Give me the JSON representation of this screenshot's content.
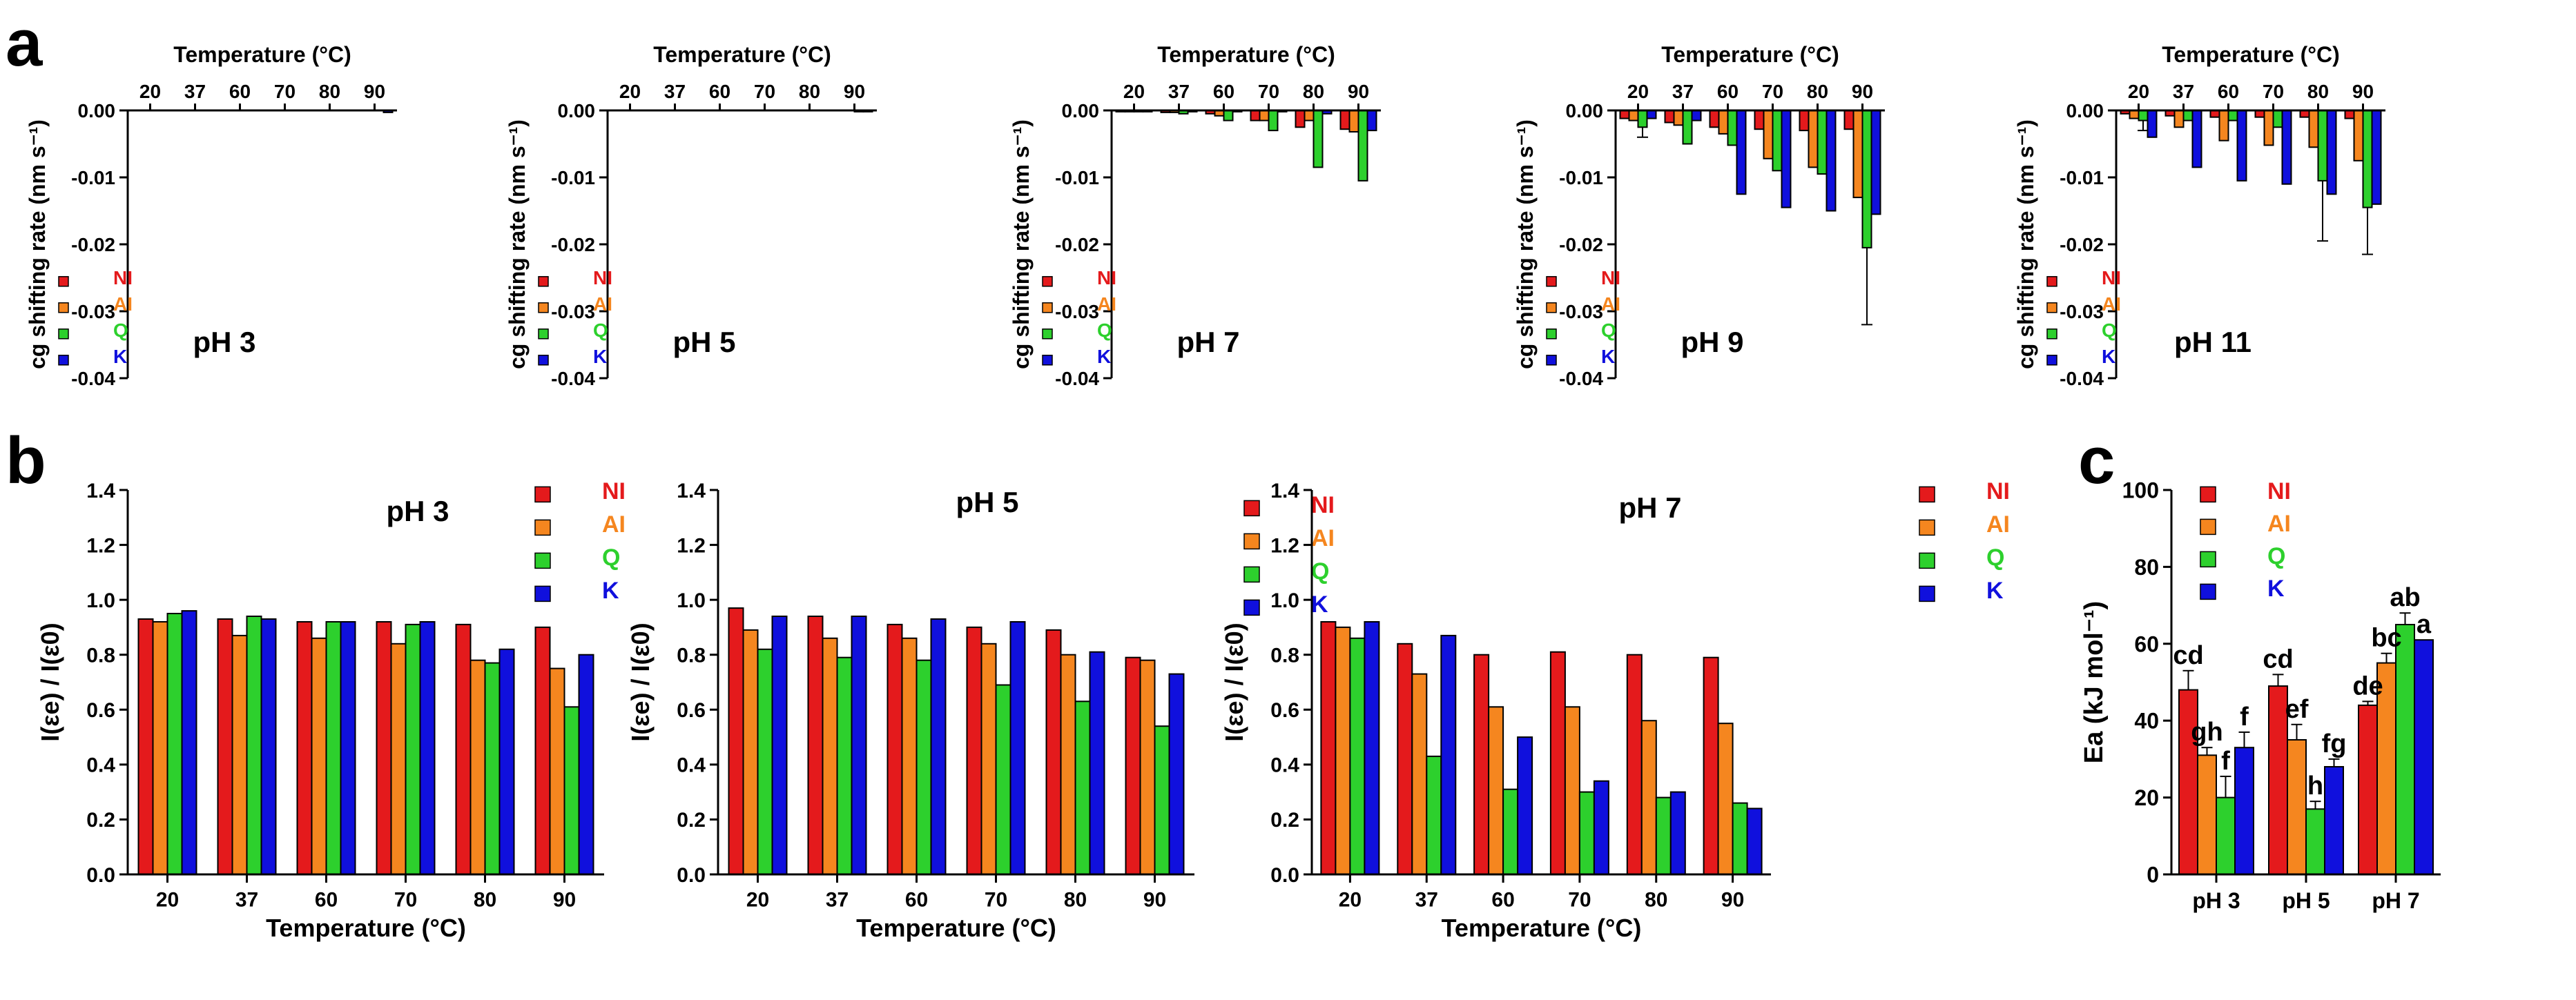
{
  "figure": {
    "panel_labels": {
      "a": "a",
      "b": "b",
      "c": "c"
    },
    "colors": {
      "NI": "#e41a1c",
      "AI": "#f5861f",
      "Q": "#2dd02d",
      "K": "#1010dd",
      "axis": "#000000"
    }
  },
  "chart_data": [
    {
      "panel": "a",
      "type": "bar",
      "title": "pH 3",
      "xlabel": "Temperature (°C)",
      "ylabel": "cg shifting rate (nm s⁻¹)",
      "categories": [
        "20",
        "37",
        "60",
        "70",
        "80",
        "90"
      ],
      "ylim": [
        -0.04,
        0
      ],
      "yticks": [
        "0.00",
        "-0.01",
        "-0.02",
        "-0.03",
        "-0.04"
      ],
      "legend": [
        "NI",
        "AI",
        "Q",
        "K"
      ],
      "series": [
        {
          "name": "NI",
          "values": [
            0,
            0,
            0,
            0,
            0,
            0
          ]
        },
        {
          "name": "AI",
          "values": [
            0,
            0,
            0,
            0,
            0,
            0
          ]
        },
        {
          "name": "Q",
          "values": [
            0,
            0,
            0,
            0,
            0,
            0
          ]
        },
        {
          "name": "K",
          "values": [
            0,
            0,
            0,
            0,
            0,
            -0.0003
          ]
        }
      ]
    },
    {
      "panel": "a",
      "type": "bar",
      "title": "pH 5",
      "xlabel": "Temperature (°C)",
      "ylabel": "cg shifting rate (nm s⁻¹)",
      "categories": [
        "20",
        "37",
        "60",
        "70",
        "80",
        "90"
      ],
      "ylim": [
        -0.04,
        0
      ],
      "yticks": [
        "0.00",
        "-0.01",
        "-0.02",
        "-0.03",
        "-0.04"
      ],
      "legend": [
        "NI",
        "AI",
        "Q",
        "K"
      ],
      "series": [
        {
          "name": "NI",
          "values": [
            0,
            0,
            0,
            0,
            0,
            0
          ]
        },
        {
          "name": "AI",
          "values": [
            0,
            0,
            0,
            0,
            0,
            0
          ]
        },
        {
          "name": "Q",
          "values": [
            0,
            0,
            0,
            0,
            0,
            -0.0002
          ]
        },
        {
          "name": "K",
          "values": [
            0,
            0,
            0,
            0,
            0,
            -0.0002
          ]
        }
      ]
    },
    {
      "panel": "a",
      "type": "bar",
      "title": "pH 7",
      "xlabel": "Temperature (°C)",
      "ylabel": "cg shifting rate (nm s⁻¹)",
      "categories": [
        "20",
        "37",
        "60",
        "70",
        "80",
        "90"
      ],
      "ylim": [
        -0.04,
        0
      ],
      "yticks": [
        "0.00",
        "-0.01",
        "-0.02",
        "-0.03",
        "-0.04"
      ],
      "legend": [
        "NI",
        "AI",
        "Q",
        "K"
      ],
      "series": [
        {
          "name": "NI",
          "values": [
            -0.0002,
            -0.0003,
            -0.0005,
            -0.0015,
            -0.0025,
            -0.0028
          ]
        },
        {
          "name": "AI",
          "values": [
            -0.0002,
            -0.0003,
            -0.0008,
            -0.0015,
            -0.0015,
            -0.0032
          ]
        },
        {
          "name": "Q",
          "values": [
            -0.0002,
            -0.0005,
            -0.0015,
            -0.003,
            -0.0085,
            -0.0105
          ]
        },
        {
          "name": "K",
          "values": [
            -0.0002,
            -0.0002,
            -0.0002,
            -0.0002,
            -0.0005,
            -0.003
          ]
        }
      ]
    },
    {
      "panel": "a",
      "type": "bar",
      "title": "pH 9",
      "xlabel": "Temperature (°C)",
      "ylabel": "cg shifting rate (nm s⁻¹)",
      "categories": [
        "20",
        "37",
        "60",
        "70",
        "80",
        "90"
      ],
      "ylim": [
        -0.04,
        0
      ],
      "yticks": [
        "0.00",
        "-0.01",
        "-0.02",
        "-0.03",
        "-0.04"
      ],
      "legend": [
        "NI",
        "AI",
        "Q",
        "K"
      ],
      "series": [
        {
          "name": "NI",
          "values": [
            -0.0012,
            -0.0018,
            -0.0025,
            -0.0028,
            -0.003,
            -0.0028
          ]
        },
        {
          "name": "AI",
          "values": [
            -0.0015,
            -0.0022,
            -0.0035,
            -0.0072,
            -0.0085,
            -0.013
          ]
        },
        {
          "name": "Q",
          "values": [
            -0.0025,
            -0.005,
            -0.0052,
            -0.009,
            -0.0095,
            -0.0205
          ]
        },
        {
          "name": "K",
          "values": [
            -0.0012,
            -0.0015,
            -0.0125,
            -0.0145,
            -0.015,
            -0.0155
          ]
        }
      ],
      "errors": {
        "Q": [
          0.0015,
          0,
          0,
          0,
          0,
          0.0115
        ]
      }
    },
    {
      "panel": "a",
      "type": "bar",
      "title": "pH 11",
      "xlabel": "Temperature (°C)",
      "ylabel": "cg shifting rate (nm s⁻¹)",
      "categories": [
        "20",
        "37",
        "60",
        "70",
        "80",
        "90"
      ],
      "ylim": [
        -0.04,
        0
      ],
      "yticks": [
        "0.00",
        "-0.01",
        "-0.02",
        "-0.03",
        "-0.04"
      ],
      "legend": [
        "NI",
        "AI",
        "Q",
        "K"
      ],
      "series": [
        {
          "name": "NI",
          "values": [
            -0.0005,
            -0.0008,
            -0.001,
            -0.001,
            -0.001,
            -0.0012
          ]
        },
        {
          "name": "AI",
          "values": [
            -0.0012,
            -0.0025,
            -0.0045,
            -0.0052,
            -0.0055,
            -0.0075
          ]
        },
        {
          "name": "Q",
          "values": [
            -0.0015,
            -0.0015,
            -0.0015,
            -0.0025,
            -0.0105,
            -0.0145
          ]
        },
        {
          "name": "K",
          "values": [
            -0.004,
            -0.0085,
            -0.0105,
            -0.011,
            -0.0125,
            -0.014
          ]
        }
      ],
      "errors": {
        "Q": [
          0.0015,
          0,
          0,
          0,
          0.009,
          0.007
        ]
      }
    },
    {
      "panel": "b",
      "type": "bar",
      "title": "pH 3",
      "xlabel": "Temperature (°C)",
      "ylabel": "I(εe) / I(ε0)",
      "categories": [
        "20",
        "37",
        "60",
        "70",
        "80",
        "90"
      ],
      "ylim": [
        0,
        1.4
      ],
      "yticks": [
        "0.0",
        "0.2",
        "0.4",
        "0.6",
        "0.8",
        "1.0",
        "1.2",
        "1.4"
      ],
      "legend": [
        "NI",
        "AI",
        "Q",
        "K"
      ],
      "series": [
        {
          "name": "NI",
          "values": [
            0.93,
            0.93,
            0.92,
            0.92,
            0.91,
            0.9
          ]
        },
        {
          "name": "AI",
          "values": [
            0.92,
            0.87,
            0.86,
            0.84,
            0.78,
            0.75
          ]
        },
        {
          "name": "Q",
          "values": [
            0.95,
            0.94,
            0.92,
            0.91,
            0.77,
            0.61
          ]
        },
        {
          "name": "K",
          "values": [
            0.96,
            0.93,
            0.92,
            0.92,
            0.82,
            0.8
          ]
        }
      ]
    },
    {
      "panel": "b",
      "type": "bar",
      "title": "pH 5",
      "xlabel": "Temperature (°C)",
      "ylabel": "I(εe) / I(ε0)",
      "categories": [
        "20",
        "37",
        "60",
        "70",
        "80",
        "90"
      ],
      "ylim": [
        0,
        1.4
      ],
      "yticks": [
        "0.0",
        "0.2",
        "0.4",
        "0.6",
        "0.8",
        "1.0",
        "1.2",
        "1.4"
      ],
      "legend": [
        "NI",
        "AI",
        "Q",
        "K"
      ],
      "series": [
        {
          "name": "NI",
          "values": [
            0.97,
            0.94,
            0.91,
            0.9,
            0.89,
            0.79
          ]
        },
        {
          "name": "AI",
          "values": [
            0.89,
            0.86,
            0.86,
            0.84,
            0.8,
            0.78
          ]
        },
        {
          "name": "Q",
          "values": [
            0.82,
            0.79,
            0.78,
            0.69,
            0.63,
            0.54
          ]
        },
        {
          "name": "K",
          "values": [
            0.94,
            0.94,
            0.93,
            0.92,
            0.81,
            0.73
          ]
        }
      ]
    },
    {
      "panel": "b",
      "type": "bar",
      "title": "pH 7",
      "xlabel": "Temperature (°C)",
      "ylabel": "I(εe) / I(ε0)",
      "categories": [
        "20",
        "37",
        "60",
        "70",
        "80",
        "90"
      ],
      "ylim": [
        0,
        1.4
      ],
      "yticks": [
        "0.0",
        "0.2",
        "0.4",
        "0.6",
        "0.8",
        "1.0",
        "1.2",
        "1.4"
      ],
      "legend": [
        "NI",
        "AI",
        "Q",
        "K"
      ],
      "series": [
        {
          "name": "NI",
          "values": [
            0.92,
            0.84,
            0.8,
            0.81,
            0.8,
            0.79
          ]
        },
        {
          "name": "AI",
          "values": [
            0.9,
            0.73,
            0.61,
            0.61,
            0.56,
            0.55
          ]
        },
        {
          "name": "Q",
          "values": [
            0.86,
            0.43,
            0.31,
            0.3,
            0.28,
            0.26
          ]
        },
        {
          "name": "K",
          "values": [
            0.92,
            0.87,
            0.5,
            0.34,
            0.3,
            0.24
          ]
        }
      ]
    },
    {
      "panel": "c",
      "type": "bar",
      "title": "",
      "xlabel": "",
      "ylabel": "Ea (kJ mol⁻¹)",
      "categories": [
        "pH 3",
        "pH 5",
        "pH 7"
      ],
      "ylim": [
        0,
        100
      ],
      "yticks": [
        "0",
        "20",
        "40",
        "60",
        "80",
        "100"
      ],
      "legend": [
        "NI",
        "AI",
        "Q",
        "K"
      ],
      "series": [
        {
          "name": "NI",
          "values": [
            48,
            49,
            44
          ]
        },
        {
          "name": "AI",
          "values": [
            31,
            35,
            55
          ]
        },
        {
          "name": "Q",
          "values": [
            20,
            17,
            65
          ]
        },
        {
          "name": "K",
          "values": [
            33,
            28,
            61
          ]
        }
      ],
      "errors": {
        "NI": [
          5,
          3,
          1
        ],
        "AI": [
          2,
          4,
          2.5
        ],
        "Q": [
          5.5,
          2,
          3
        ],
        "K": [
          4,
          2,
          0
        ]
      },
      "annotations": [
        [
          "cd",
          "gh",
          "f",
          "f"
        ],
        [
          "cd",
          "ef",
          "h",
          "fg"
        ],
        [
          "de",
          "bc",
          "ab",
          "a"
        ]
      ]
    }
  ]
}
